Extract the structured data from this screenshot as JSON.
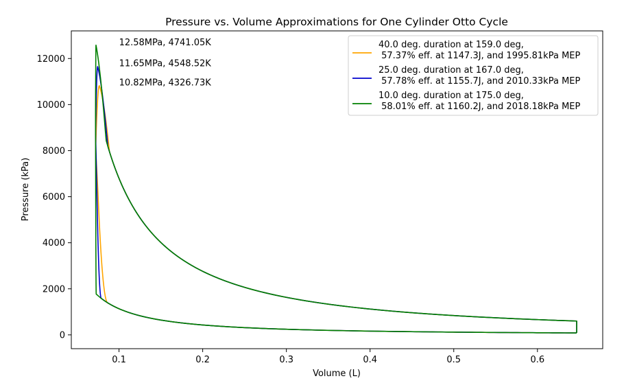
{
  "chart_data": {
    "type": "line",
    "title": "Pressure vs. Volume Approximations for One Cylinder Otto Cycle",
    "xlabel": "Volume (L)",
    "ylabel": "Pressure (kPa)",
    "xlim": [
      0.043,
      0.678
    ],
    "ylim": [
      -600,
      13200
    ],
    "xticks": [
      0.1,
      0.2,
      0.3,
      0.4,
      0.5,
      0.6
    ],
    "xtick_labels": [
      "0.1",
      "0.2",
      "0.3",
      "0.4",
      "0.5",
      "0.6"
    ],
    "yticks": [
      0,
      2000,
      4000,
      6000,
      8000,
      10000,
      12000
    ],
    "ytick_labels": [
      "0",
      "2000",
      "4000",
      "6000",
      "8000",
      "10000",
      "12000"
    ],
    "grid": false,
    "legend_position": "top-right",
    "cycle": {
      "v_min": 0.0719,
      "v_max": 0.6469,
      "p_intake_bdc": 90,
      "p_compression_end": 1800,
      "p_exhaust_start": 600,
      "compression_exponent": 1.4,
      "expansion_exponent": 1.3
    },
    "series": [
      {
        "name": "40.0 deg. duration at 159.0 deg,\n 57.37% eff. at 1147.3J, and 1995.81kPa MEP",
        "color": "#ffa500",
        "peak_pressure_kpa": 10820,
        "peak_volume_l": 0.0765,
        "burn_start_volume_l": 0.087,
        "annotation": "10.82MPa, 4326.73K"
      },
      {
        "name": "25.0 deg. duration at 167.0 deg,\n 57.78% eff. at 1155.7J, and 2010.33kPa MEP",
        "color": "#0000cd",
        "peak_pressure_kpa": 11650,
        "peak_volume_l": 0.0745,
        "burn_start_volume_l": 0.079,
        "annotation": "11.65MPa, 4548.52K"
      },
      {
        "name": "10.0 deg. duration at 175.0 deg,\n 58.01% eff. at 1160.2J, and 2018.18kPa MEP",
        "color": "#008000",
        "peak_pressure_kpa": 12580,
        "peak_volume_l": 0.0725,
        "burn_start_volume_l": 0.0728,
        "annotation": "12.58MPa, 4741.05K"
      }
    ],
    "annotations": [
      {
        "text": "12.58MPa, 4741.05K",
        "x": 0.1,
        "y": 12700
      },
      {
        "text": "11.65MPa, 4548.52K",
        "x": 0.1,
        "y": 11780
      },
      {
        "text": "10.82MPa, 4326.73K",
        "x": 0.1,
        "y": 10950
      }
    ]
  }
}
